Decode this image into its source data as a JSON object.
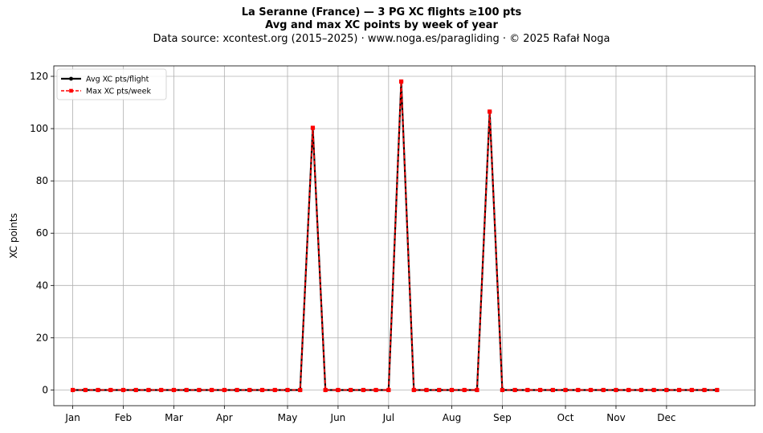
{
  "chart_data": {
    "type": "line",
    "title": "La Seranne (France)  —  3 PG XC flights ≥100 pts",
    "subtitle": "Avg and max XC points by week of year",
    "source": "Data source: xcontest.org (2015–2025)  ·  www.noga.es/paragliding  ·  © 2025 Rafał Noga",
    "xlabel": "",
    "ylabel": "XC points",
    "ylim": [
      -6,
      124
    ],
    "xlim": [
      -1.5,
      54
    ],
    "yticks": [
      0,
      20,
      40,
      60,
      80,
      100,
      120
    ],
    "xticks": [
      {
        "label": "Jan",
        "week": 0
      },
      {
        "label": "Feb",
        "week": 4
      },
      {
        "label": "Mar",
        "week": 8
      },
      {
        "label": "Apr",
        "week": 12
      },
      {
        "label": "May",
        "week": 17
      },
      {
        "label": "Jun",
        "week": 21
      },
      {
        "label": "Jul",
        "week": 25
      },
      {
        "label": "Aug",
        "week": 30
      },
      {
        "label": "Sep",
        "week": 34
      },
      {
        "label": "Oct",
        "week": 39
      },
      {
        "label": "Nov",
        "week": 43
      },
      {
        "label": "Dec",
        "week": 47
      }
    ],
    "grid": true,
    "legend_position": "top-left",
    "x": [
      0,
      1,
      2,
      3,
      4,
      5,
      6,
      7,
      8,
      9,
      10,
      11,
      12,
      13,
      14,
      15,
      16,
      17,
      18,
      19,
      20,
      21,
      22,
      23,
      24,
      25,
      26,
      27,
      28,
      29,
      30,
      31,
      32,
      33,
      34,
      35,
      36,
      37,
      38,
      39,
      40,
      41,
      42,
      43,
      44,
      45,
      46,
      47,
      48,
      49,
      50,
      51
    ],
    "series": [
      {
        "name": "Avg XC pts/flight",
        "color": "#000000",
        "style": "solid",
        "marker": "circle",
        "values": [
          0,
          0,
          0,
          0,
          0,
          0,
          0,
          0,
          0,
          0,
          0,
          0,
          0,
          0,
          0,
          0,
          0,
          0,
          0,
          100.3,
          0,
          0,
          0,
          0,
          0,
          0,
          118.0,
          0,
          0,
          0,
          0,
          0,
          0,
          106.5,
          0,
          0,
          0,
          0,
          0,
          0,
          0,
          0,
          0,
          0,
          0,
          0,
          0,
          0,
          0,
          0,
          0,
          0
        ]
      },
      {
        "name": "Max XC pts/week",
        "color": "#ff0000",
        "style": "dashed",
        "marker": "square",
        "values": [
          0,
          0,
          0,
          0,
          0,
          0,
          0,
          0,
          0,
          0,
          0,
          0,
          0,
          0,
          0,
          0,
          0,
          0,
          0,
          100.3,
          0,
          0,
          0,
          0,
          0,
          0,
          118.0,
          0,
          0,
          0,
          0,
          0,
          0,
          106.5,
          0,
          0,
          0,
          0,
          0,
          0,
          0,
          0,
          0,
          0,
          0,
          0,
          0,
          0,
          0,
          0,
          0,
          0
        ]
      }
    ]
  }
}
